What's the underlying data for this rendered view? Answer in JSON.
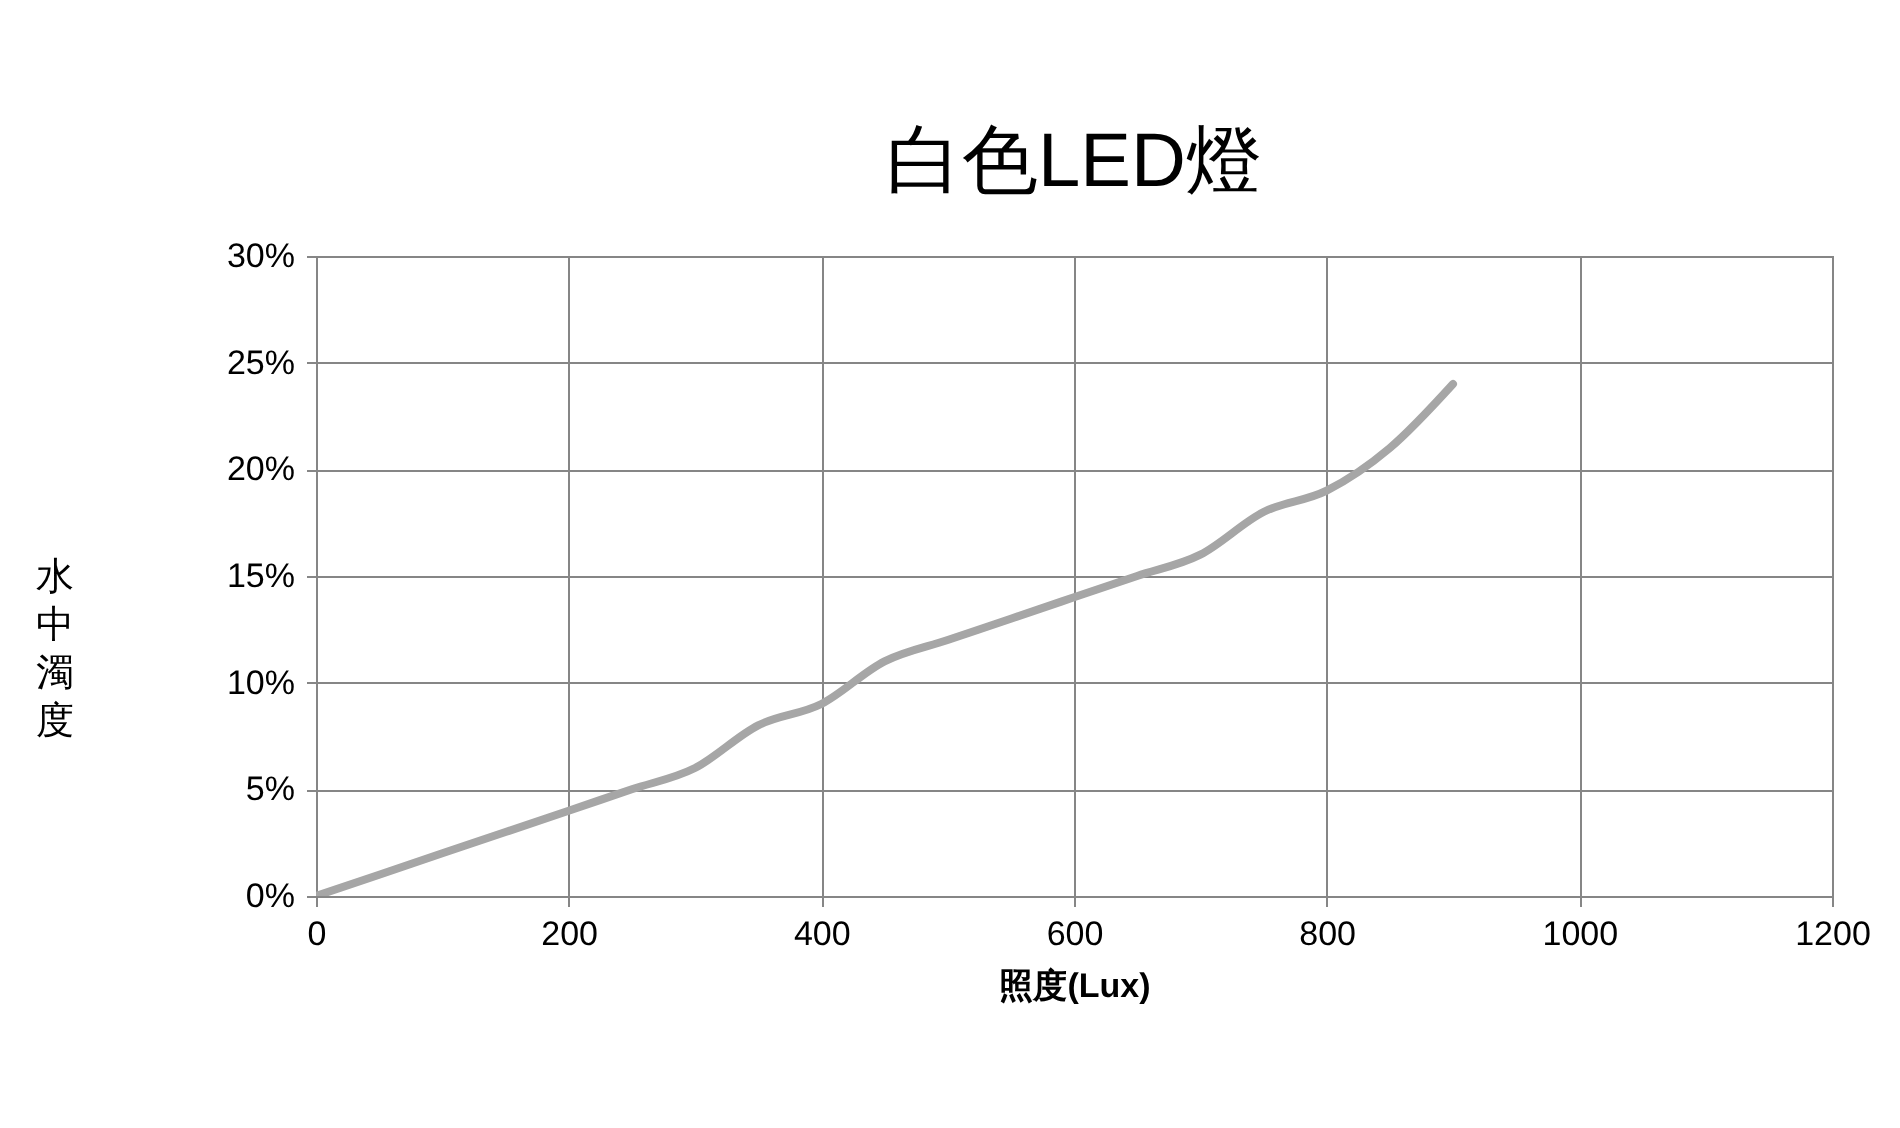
{
  "chart_data": {
    "type": "line",
    "title": "白色LED燈",
    "xlabel": "照度(Lux)",
    "ylabel": "水中濁度",
    "x": [
      0,
      50,
      100,
      150,
      200,
      250,
      300,
      350,
      400,
      450,
      500,
      550,
      600,
      650,
      700,
      750,
      800,
      850,
      900
    ],
    "series": [
      {
        "color": "#a6a6a6",
        "values": [
          0,
          1,
          2,
          3,
          4,
          5,
          6,
          8,
          9,
          11,
          12,
          13,
          14,
          15,
          16,
          18,
          19,
          21,
          24
        ]
      }
    ],
    "xlim": [
      0,
      1200
    ],
    "xticks": [
      0,
      200,
      400,
      600,
      800,
      1000,
      1200
    ],
    "ylim": [
      0,
      30
    ],
    "yticks": [
      {
        "value": 0,
        "label": "0%"
      },
      {
        "value": 5,
        "label": "5%"
      },
      {
        "value": 10,
        "label": "10%"
      },
      {
        "value": 15,
        "label": "15%"
      },
      {
        "value": 20,
        "label": "20%"
      },
      {
        "value": 25,
        "label": "25%"
      },
      {
        "value": 30,
        "label": "30%"
      }
    ],
    "grid": true,
    "marker": "none",
    "line_style": "solid",
    "legend": false
  }
}
